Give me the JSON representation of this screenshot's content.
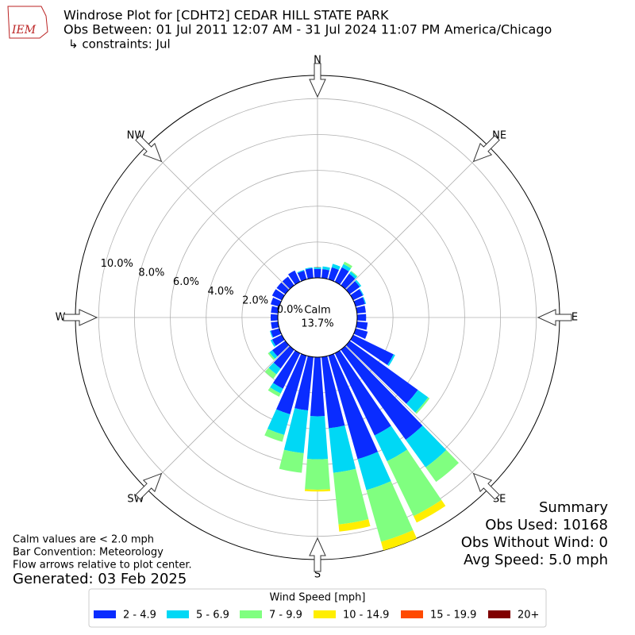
{
  "chart_data": {
    "type": "windrose",
    "title": "Windrose Plot for [CDHT2] CEDAR HILL STATE PARK",
    "subtitle": "Obs Between: 01 Jul 2011 12:07 AM - 31 Jul 2024 11:07 PM America/Chicago",
    "constraints": "↳ constraints: Jul",
    "logo": "IEM",
    "x": [
      0,
      10,
      20,
      30,
      40,
      50,
      60,
      70,
      80,
      90,
      100,
      110,
      120,
      130,
      140,
      150,
      160,
      170,
      180,
      190,
      200,
      210,
      220,
      230,
      240,
      250,
      260,
      270,
      280,
      290,
      300,
      310,
      320,
      330,
      340,
      350
    ],
    "series": [
      {
        "name": "2 - 4.9",
        "color": "#0a2cff",
        "values": [
          0.5,
          0.5,
          0.7,
          0.9,
          0.8,
          0.7,
          0.6,
          0.55,
          0.5,
          0.5,
          0.6,
          0.7,
          2.5,
          4.7,
          6.2,
          5.1,
          6.0,
          4.0,
          3.3,
          3.0,
          3.4,
          2.2,
          1.3,
          0.9,
          0.6,
          0.5,
          0.4,
          0.4,
          0.4,
          0.5,
          0.6,
          0.6,
          0.6,
          0.7,
          0.5,
          0.55
        ]
      },
      {
        "name": "5 - 6.9",
        "color": "#00d8f5",
        "values": [
          0.1,
          0.15,
          0.2,
          0.2,
          0.15,
          0.1,
          0.05,
          0.05,
          0,
          0,
          0,
          0,
          0.1,
          0.7,
          1.9,
          1.6,
          1.8,
          2.5,
          2.4,
          2.4,
          1.2,
          0.3,
          0.4,
          0.2,
          0.1,
          0.05,
          0,
          0,
          0,
          0,
          0,
          0,
          0,
          0,
          0.05,
          0.05
        ]
      },
      {
        "name": "7 - 9.9",
        "color": "#80ff80",
        "values": [
          0,
          0,
          0,
          0.15,
          0.05,
          0,
          0,
          0,
          0,
          0,
          0,
          0,
          0,
          0.1,
          1.0,
          3.4,
          3.0,
          2.9,
          1.7,
          1.1,
          0.4,
          0.2,
          0.3,
          0.1,
          0,
          0,
          0,
          0,
          0,
          0,
          0,
          0,
          0,
          0,
          0,
          0
        ]
      },
      {
        "name": "10 - 14.9",
        "color": "#ffee00",
        "values": [
          0,
          0,
          0,
          0,
          0,
          0,
          0,
          0,
          0,
          0,
          0,
          0,
          0,
          0,
          0,
          0.4,
          0.5,
          0.4,
          0.1,
          0,
          0,
          0,
          0,
          0,
          0,
          0,
          0,
          0,
          0,
          0,
          0,
          0,
          0,
          0,
          0,
          0
        ]
      },
      {
        "name": "15 - 19.9",
        "color": "#ff4a00",
        "values": [
          0,
          0,
          0,
          0,
          0,
          0,
          0,
          0,
          0,
          0,
          0,
          0,
          0,
          0,
          0,
          0,
          0,
          0,
          0,
          0,
          0,
          0,
          0,
          0,
          0,
          0,
          0,
          0,
          0,
          0,
          0,
          0,
          0,
          0,
          0,
          0
        ]
      },
      {
        "name": "20+",
        "color": "#800000",
        "values": [
          0,
          0,
          0,
          0,
          0,
          0,
          0,
          0,
          0,
          0,
          0,
          0,
          0,
          0,
          0,
          0,
          0,
          0,
          0,
          0,
          0,
          0,
          0,
          0,
          0,
          0,
          0,
          0,
          0,
          0,
          0,
          0,
          0,
          0,
          0,
          0
        ]
      }
    ],
    "ylim": [
      0,
      11.3
    ],
    "yticks": [
      {
        "value": 0,
        "label": "0.0%"
      },
      {
        "value": 2,
        "label": "2.0%"
      },
      {
        "value": 4,
        "label": "4.0%"
      },
      {
        "value": 6,
        "label": "6.0%"
      },
      {
        "value": 8,
        "label": "8.0%"
      },
      {
        "value": 10,
        "label": "10.0%"
      }
    ],
    "compass": [
      {
        "value": 0,
        "label": "N"
      },
      {
        "value": 45,
        "label": "NE"
      },
      {
        "value": 90,
        "label": "E"
      },
      {
        "value": 135,
        "label": "SE"
      },
      {
        "value": 180,
        "label": "S"
      },
      {
        "value": 225,
        "label": "SW"
      },
      {
        "value": 270,
        "label": "W"
      },
      {
        "value": 315,
        "label": "NW"
      }
    ],
    "calm": {
      "label": "Calm",
      "value": 13.7,
      "value_label": "13.7%"
    },
    "legend_title": "Wind Speed [mph]",
    "summary": [
      "Summary",
      "Obs Used: 10168",
      "Obs Without Wind: 0",
      "Avg Speed: 5.0 mph"
    ],
    "notes": [
      "Calm values are < 2.0 mph",
      "Bar Convention: Meteorology",
      "Flow arrows relative to plot center."
    ],
    "generated": "Generated: 03 Feb 2025"
  }
}
